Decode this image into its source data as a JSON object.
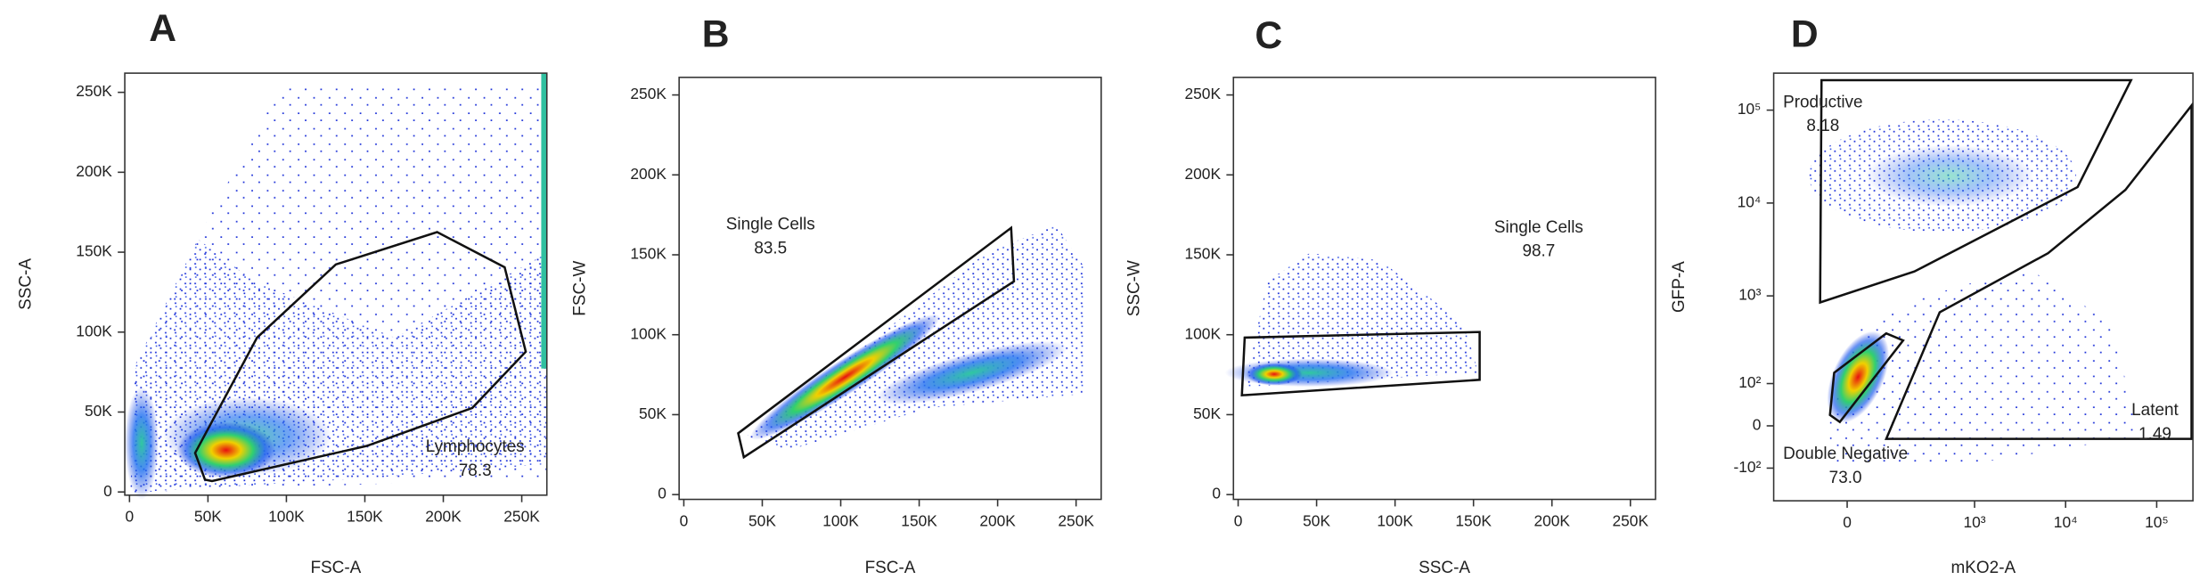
{
  "chart_data": [
    {
      "type": "scatter",
      "panel": "A",
      "xlabel": "FSC-A",
      "ylabel": "SSC-A",
      "xlim": [
        -3000,
        266000
      ],
      "ylim": [
        -2000,
        262000
      ],
      "xticks": [
        0,
        {
          "value": 50000,
          "label": "50K"
        },
        {
          "value": 100000,
          "label": "100K"
        },
        {
          "value": 150000,
          "label": "150K"
        },
        {
          "value": 200000,
          "label": "200K"
        },
        {
          "value": 250000,
          "label": "250K"
        }
      ],
      "yticks": [
        0,
        {
          "value": 50000,
          "label": "50K"
        },
        {
          "value": 100000,
          "label": "100K"
        },
        {
          "value": 150000,
          "label": "150K"
        },
        {
          "value": 200000,
          "label": "200K"
        },
        {
          "value": 250000,
          "label": "250K"
        }
      ],
      "gates": [
        {
          "name": "Lymphocytes",
          "value": 78.3
        }
      ]
    },
    {
      "type": "scatter",
      "panel": "B",
      "xlabel": "FSC-A",
      "ylabel": "FSC-W",
      "xlim": [
        -3000,
        266000
      ],
      "ylim": [
        -3000,
        261000
      ],
      "xticks": [
        0,
        {
          "value": 50000,
          "label": "50K"
        },
        {
          "value": 100000,
          "label": "100K"
        },
        {
          "value": 150000,
          "label": "150K"
        },
        {
          "value": 200000,
          "label": "200K"
        },
        {
          "value": 250000,
          "label": "250K"
        }
      ],
      "yticks": [
        0,
        {
          "value": 50000,
          "label": "50K"
        },
        {
          "value": 100000,
          "label": "100K"
        },
        {
          "value": 150000,
          "label": "150K"
        },
        {
          "value": 200000,
          "label": "200K"
        },
        {
          "value": 250000,
          "label": "250K"
        }
      ],
      "gates": [
        {
          "name": "Single Cells",
          "value": 83.5
        }
      ]
    },
    {
      "type": "scatter",
      "panel": "C",
      "xlabel": "SSC-A",
      "ylabel": "SSC-W",
      "xlim": [
        -3000,
        266000
      ],
      "ylim": [
        -3000,
        261000
      ],
      "xticks": [
        0,
        {
          "value": 50000,
          "label": "50K"
        },
        {
          "value": 100000,
          "label": "100K"
        },
        {
          "value": 150000,
          "label": "150K"
        },
        {
          "value": 200000,
          "label": "200K"
        },
        {
          "value": 250000,
          "label": "250K"
        }
      ],
      "yticks": [
        0,
        {
          "value": 50000,
          "label": "50K"
        },
        {
          "value": 100000,
          "label": "100K"
        },
        {
          "value": 150000,
          "label": "150K"
        },
        {
          "value": 200000,
          "label": "200K"
        },
        {
          "value": 250000,
          "label": "250K"
        }
      ],
      "gates": [
        {
          "name": "Single Cells",
          "value": 98.7
        }
      ]
    },
    {
      "type": "scatter",
      "panel": "D",
      "xlabel": "mKO2-A",
      "ylabel": "GFP-A",
      "scale": "biexponential",
      "xlim": [
        -250,
        250000
      ],
      "ylim": [
        -250,
        250000
      ],
      "xticks": [
        0,
        {
          "value": 1000,
          "label": "10³"
        },
        {
          "value": 10000,
          "label": "10⁴"
        },
        {
          "value": 100000,
          "label": "10⁵"
        }
      ],
      "yticks": [
        {
          "value": -100,
          "label": "-10²"
        },
        0,
        {
          "value": 100,
          "label": "10²"
        },
        {
          "value": 1000,
          "label": "10³"
        },
        {
          "value": 10000,
          "label": "10⁴"
        },
        {
          "value": 100000,
          "label": "10⁵"
        }
      ],
      "gates": [
        {
          "name": "Productive",
          "value": 8.18
        },
        {
          "name": "Double Negative",
          "value": 73.0,
          "value_label": "73.0"
        },
        {
          "name": "Latent",
          "value": 1.49
        }
      ]
    }
  ]
}
